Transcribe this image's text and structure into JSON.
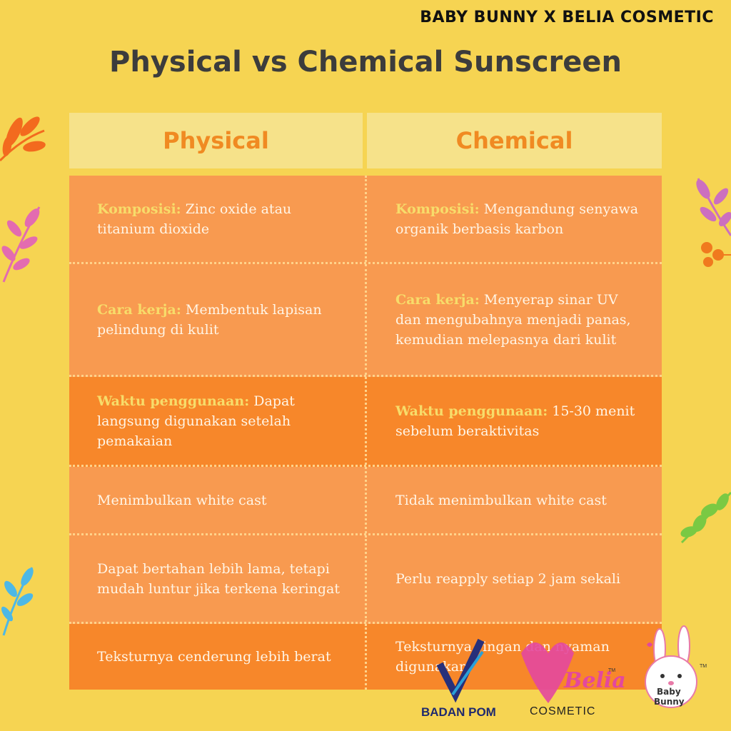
{
  "brand_header": "BABY BUNNY X BELIA COSMETIC",
  "title": "Physical vs Chemical Sunscreen",
  "columns": {
    "left": "Physical",
    "right": "Chemical"
  },
  "rows": [
    {
      "left": {
        "key": "Komposisi:",
        "text": " Zinc oxide atau titanium dioxide"
      },
      "right": {
        "key": "Komposisi:",
        "text": " Mengandung senyawa organik berbasis karbon"
      }
    },
    {
      "left": {
        "key": "Cara kerja:",
        "text": " Membentuk lapisan pelindung di kulit"
      },
      "right": {
        "key": "Cara kerja:",
        "text": " Menyerap sinar UV dan mengubahnya menjadi panas, kemudian melepasnya dari kulit"
      }
    },
    {
      "left": {
        "key": "Waktu penggunaan:",
        "text": " Dapat langsung digunakan setelah pemakaian"
      },
      "right": {
        "key": "Waktu penggunaan:",
        "text": " 15-30 menit sebelum beraktivitas"
      }
    },
    {
      "left": {
        "key": "",
        "text": "Menimbulkan white cast"
      },
      "right": {
        "key": "",
        "text": "Tidak menimbulkan white cast"
      }
    },
    {
      "left": {
        "key": "",
        "text": "Dapat bertahan lebih lama, tetapi mudah luntur jika terkena keringat"
      },
      "right": {
        "key": "",
        "text": "Perlu reapply setiap 2 jam sekali"
      }
    },
    {
      "left": {
        "key": "",
        "text": "Teksturnya cenderung lebih berat"
      },
      "right": {
        "key": "",
        "text": "Teksturnya ringan dan nyaman digunakan"
      }
    }
  ],
  "logos": {
    "badan_pom": "BADAN POM",
    "belia_script": "Belia",
    "belia_word": "COSMETIC",
    "baby_bunny_line1": "Baby",
    "baby_bunny_line2": "Bunny",
    "tm": "TM"
  },
  "colors": {
    "background": "#f6d452",
    "header_cell": "#f6e28a",
    "row_light": "#f89a50",
    "row_dark": "#f7872a",
    "accent_orange": "#f08a22",
    "key_text": "#f7dc6a"
  }
}
